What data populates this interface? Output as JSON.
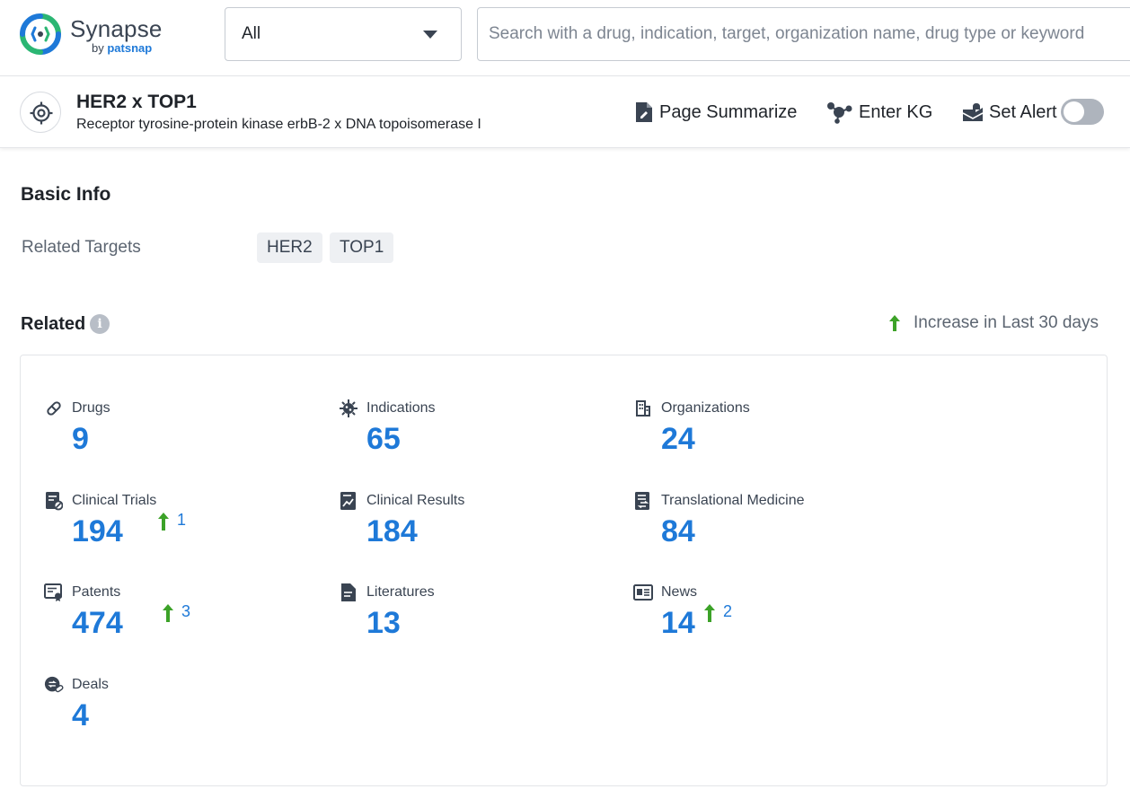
{
  "topbar": {
    "logo_name": "Synapse",
    "logo_sub_by": "by ",
    "logo_sub_brand": "patsnap",
    "select_value": "All",
    "search_placeholder": "Search with a drug, indication, target, organization name, drug type or keyword"
  },
  "header": {
    "title": "HER2 x TOP1",
    "subtitle": "Receptor tyrosine-protein kinase erbB-2 x DNA topoisomerase I",
    "actions": {
      "summarize": "Page Summarize",
      "kg": "Enter KG",
      "alert": "Set Alert"
    },
    "alert_enabled": false
  },
  "basic_info": {
    "title": "Basic Info",
    "related_targets_label": "Related Targets",
    "targets": [
      "HER2",
      "TOP1"
    ]
  },
  "related": {
    "title": "Related",
    "legend": "Increase in Last 30 days",
    "stats": [
      {
        "label": "Drugs",
        "value": "9",
        "icon": "pill-icon"
      },
      {
        "label": "Indications",
        "value": "65",
        "icon": "virus-icon"
      },
      {
        "label": "Organizations",
        "value": "24",
        "icon": "building-icon"
      },
      {
        "label": "Clinical Trials",
        "value": "194",
        "increase": "1",
        "icon": "clinical-trial-icon"
      },
      {
        "label": "Clinical Results",
        "value": "184",
        "icon": "chart-report-icon"
      },
      {
        "label": "Translational Medicine",
        "value": "84",
        "icon": "translational-medicine-icon"
      },
      {
        "label": "Patents",
        "value": "474",
        "increase": "3",
        "icon": "patent-icon"
      },
      {
        "label": "Literatures",
        "value": "13",
        "icon": "document-icon"
      },
      {
        "label": "News",
        "value": "14",
        "increase": "2",
        "icon": "newspaper-icon"
      },
      {
        "label": "Deals",
        "value": "4",
        "icon": "deal-icon"
      }
    ]
  },
  "colors": {
    "accent": "#1e79d8",
    "increase": "#3ca228",
    "logo_green": "#2bb673"
  }
}
